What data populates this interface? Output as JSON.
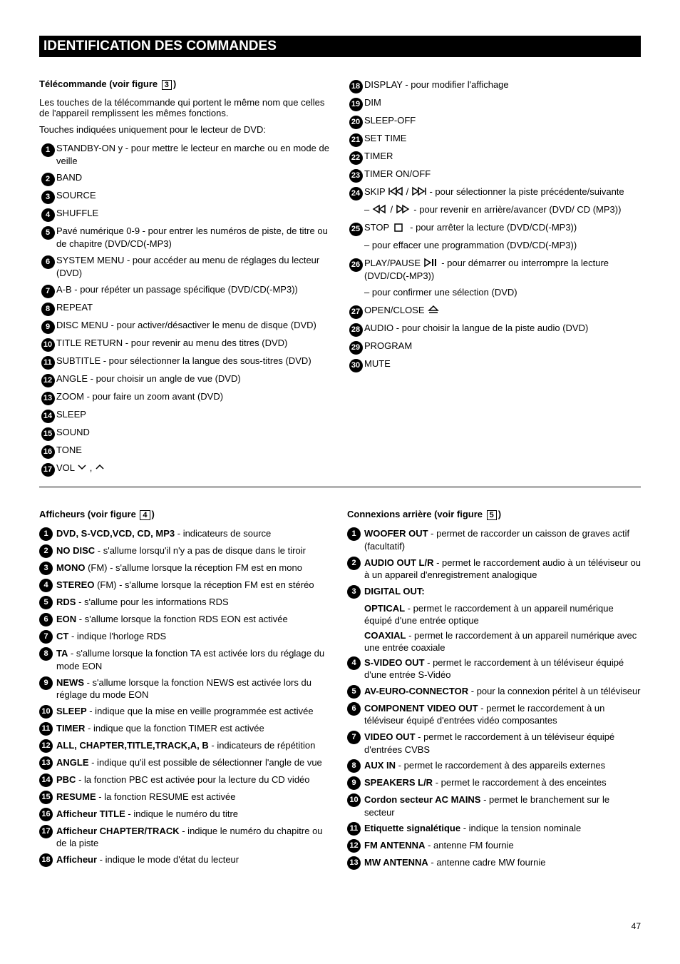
{
  "header": "IDENTIFICATION DES COMMANDES",
  "remote": {
    "heading": "Télécommande (voir figure",
    "heading_suffix": ")",
    "figref": "3",
    "intro1": "Les touches de la télécommande qui portent le même nom que celles de l'appareil remplissent les mêmes fonctions.",
    "intro2": "Touches indiquées uniquement pour le lecteur de DVD:",
    "left": [
      {
        "n": "1",
        "txt": "STANDBY-ON y - pour mettre le lecteur en marche ou en mode de veille"
      },
      {
        "n": "2",
        "txt": "BAND"
      },
      {
        "n": "3",
        "txt": "SOURCE"
      },
      {
        "n": "4",
        "txt": "SHUFFLE"
      },
      {
        "n": "5",
        "txt": "Pavé numérique 0-9 - pour entrer les numéros de piste, de titre ou de chapitre (DVD/CD(-MP3)"
      },
      {
        "n": "6",
        "txt": "SYSTEM MENU - pour accéder au menu de réglages du lecteur (DVD)"
      },
      {
        "n": "7",
        "txt": "A-B - pour répéter un passage spécifique (DVD/CD(-MP3))"
      },
      {
        "n": "8",
        "txt": "REPEAT"
      },
      {
        "n": "9",
        "txt": "DISC MENU - pour activer/désactiver le menu de disque (DVD)"
      },
      {
        "n": "10",
        "txt": "TITLE RETURN - pour revenir au menu des titres (DVD)"
      },
      {
        "n": "11",
        "txt": "SUBTITLE - pour sélectionner la langue des sous-titres (DVD)"
      },
      {
        "n": "12",
        "txt": "ANGLE - pour choisir un angle de vue (DVD)"
      },
      {
        "n": "13",
        "txt": "ZOOM - pour faire un zoom avant (DVD)"
      },
      {
        "n": "14",
        "txt": "SLEEP"
      },
      {
        "n": "15",
        "txt": "SOUND"
      },
      {
        "n": "16",
        "txt": "TONE"
      },
      {
        "n": "17",
        "txt": "VOL (3,4)",
        "extra": "down_up"
      }
    ],
    "right": [
      {
        "n": "18",
        "txt": "DISPLAY - pour modifier l'affichage"
      },
      {
        "n": "19",
        "txt": "DIM"
      },
      {
        "n": "20",
        "txt": "SLEEP-OFF"
      },
      {
        "n": "21",
        "txt": "SET TIME"
      },
      {
        "n": "22",
        "txt": "TIMER"
      },
      {
        "n": "23",
        "txt": "TIMER ON/OFF"
      },
      {
        "n": "24",
        "txt": "SKIP ",
        "icon1": "prev",
        "mid": " / ",
        "icon2": "next",
        "tail": " - pour sélectionner la piste précédente/suivante",
        "sub": [
          {
            "type": "dash",
            "icon1": "rew",
            "txt": " / ",
            "icon2": "fwd",
            "tail": " - pour revenir en arrière/avancer (DVD/ CD (MP3))"
          }
        ]
      },
      {
        "n": "25",
        "txt": "STOP ",
        "icon1": "stop",
        "tail": " - pour arrêter la lecture (DVD/CD(-MP3))",
        "sub": [
          {
            "type": "dash",
            "txt": "pour effacer une programmation (DVD/CD(-MP3))"
          }
        ]
      },
      {
        "n": "26",
        "txt": "PLAY/PAUSE ",
        "icon1": "playpause",
        "tail": " - pour démarrer ou interrompre la lecture (DVD/CD(-MP3))",
        "sub": [
          {
            "type": "dash",
            "txt": "pour confirmer une sélection (DVD)"
          }
        ]
      },
      {
        "n": "27",
        "txt": "OPEN/CLOSE ",
        "icon1": "eject"
      },
      {
        "n": "28",
        "txt": "AUDIO - pour choisir la langue de la piste audio (DVD)"
      },
      {
        "n": "29",
        "txt": "PROGRAM"
      },
      {
        "n": "30",
        "txt": "MUTE"
      }
    ]
  },
  "display": {
    "heading": "Afficheurs (voir figure",
    "figref": "4",
    "heading_suffix": ")",
    "items": [
      {
        "n": "1",
        "bold": "DVD, S-VCD,VCD, CD, MP3",
        "txt": " - indicateurs de source"
      },
      {
        "n": "2",
        "bold": "NO DISC",
        "txt": " - s'allume lorsqu'il n'y a pas de disque dans le tiroir"
      },
      {
        "n": "3",
        "bold": "MONO",
        "txt": " (FM) - s'allume lorsque la réception FM est en mono"
      },
      {
        "n": "4",
        "bold": "STEREO",
        "txt": " (FM) - s'allume lorsque la réception FM est en stéréo"
      },
      {
        "n": "5",
        "bold": "RDS",
        "txt": " - s'allume pour les informations RDS"
      },
      {
        "n": "6",
        "bold": "EON",
        "txt": " - s'allume lorsque la fonction RDS EON est activée"
      },
      {
        "n": "7",
        "bold": "CT",
        "txt": " - indique l'horloge RDS"
      },
      {
        "n": "8",
        "bold": "TA",
        "txt": " - s'allume lorsque la fonction TA est activée lors du réglage du mode EON"
      },
      {
        "n": "9",
        "bold": "NEWS",
        "txt": " - s'allume lorsque la fonction NEWS est activée lors du réglage du mode EON"
      },
      {
        "n": "10",
        "bold": "SLEEP",
        "txt": " - indique que la mise en veille programmée est activée"
      },
      {
        "n": "11",
        "bold": "TIMER",
        "txt": " - indique que la fonction TIMER est activée"
      },
      {
        "n": "12",
        "bold": "ALL, CHAPTER,TITLE,TRACK,A, B",
        "txt": " - indicateurs de répétition"
      },
      {
        "n": "13",
        "bold": "ANGLE",
        "txt": " - indique qu'il est possible de sélectionner l'angle de vue"
      },
      {
        "n": "14",
        "bold": "PBC",
        "txt": " - la fonction PBC est activée pour la lecture du CD vidéo"
      },
      {
        "n": "15",
        "bold": "RESUME",
        "txt": " - la fonction RESUME est activée"
      },
      {
        "n": "16",
        "bold": "Afficheur TITLE",
        "txt": " - indique le numéro du titre"
      },
      {
        "n": "17",
        "bold": "Afficheur CHAPTER/TRACK",
        "txt": " - indique le numéro du chapitre ou de la piste"
      },
      {
        "n": "18",
        "bold": "Afficheur",
        "txt": " - indique le mode d'état du lecteur"
      }
    ]
  },
  "connections": {
    "heading": "Connexions arrière (voir figure",
    "figref": "5",
    "heading_suffix": ")",
    "items": [
      {
        "n": "1",
        "bold": "WOOFER OUT",
        "txt": " - permet de raccorder un caisson de graves actif (facultatif)"
      },
      {
        "n": "2",
        "bold": "AUDIO OUT L/R",
        "txt": " - permet le raccordement audio à un téléviseur ou à un appareil d'enregistrement analogique"
      },
      {
        "n": "3",
        "bold": "DIGITAL OUT:",
        "txt": ""
      },
      {
        "n": "",
        "bold": "OPTICAL",
        "txt": " - permet le raccordement à un appareil numérique équipé d'une entrée optique",
        "indent": true
      },
      {
        "n": "",
        "bold": "COAXIAL",
        "txt": " - permet le raccordement à un appareil numérique avec une entrée coaxiale",
        "indent": true
      },
      {
        "n": "4",
        "bold": "S-VIDEO OUT",
        "txt": " - permet le raccordement à un téléviseur équipé d'une entrée S-Vidéo"
      },
      {
        "n": "5",
        "bold": "AV-EURO-CONNECTOR",
        "txt": " - pour la connexion péritel à un téléviseur"
      },
      {
        "n": "6",
        "bold": "COMPONENT VIDEO OUT",
        "txt": " - permet le raccordement à un téléviseur équipé d'entrées vidéo composantes"
      },
      {
        "n": "7",
        "bold": "VIDEO OUT",
        "txt": " - permet le raccordement à un téléviseur équipé d'entrées CVBS"
      },
      {
        "n": "8",
        "bold": "AUX IN",
        "txt": " - permet le raccordement à des appareils externes"
      },
      {
        "n": "9",
        "bold": "SPEAKERS L/R",
        "txt": " - permet le raccordement à des enceintes"
      },
      {
        "n": "10",
        "bold": "Cordon secteur AC MAINS",
        "txt": " - permet le branchement sur le secteur"
      },
      {
        "n": "11",
        "bold": "Etiquette signalétique",
        "txt": " - indique la tension nominale"
      },
      {
        "n": "12",
        "bold": "FM ANTENNA",
        "txt": " - antenne FM fournie"
      },
      {
        "n": "13",
        "bold": "MW ANTENNA",
        "txt": " - antenne cadre MW fournie"
      }
    ]
  },
  "footer": "47"
}
